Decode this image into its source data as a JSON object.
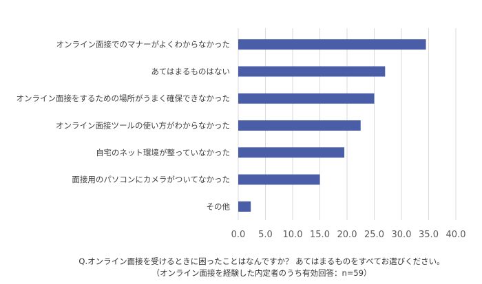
{
  "chart_data": {
    "type": "bar",
    "orientation": "horizontal",
    "categories": [
      "オンライン面接でのマナーがよくわからなかった",
      "あてはまるものはない",
      "オンライン面接をするための場所がうまく確保できなかった",
      "オンライン面接ツールの使い方がわからなかった",
      "自宅のネット環境が整っていなかった",
      "面接用のパソコンにカメラがついてなかった",
      "その他"
    ],
    "values": [
      34.5,
      27.0,
      25.0,
      22.5,
      19.5,
      15.0,
      2.3
    ],
    "xlim": [
      0,
      40
    ],
    "ticks": [
      "0.0",
      "5.0",
      "10.0",
      "15.0",
      "20.0",
      "25.0",
      "30.0",
      "35.0",
      "40.0"
    ],
    "grid": true,
    "bar_color": "#4a5ea8",
    "caption_line1": "Q.オンライン面接を受けるときに困ったことはなんですか？ あてはまるものをすべてお選びください。",
    "caption_line2": "（オンライン面接を経験した内定者のうち有効回答：n=59）"
  }
}
